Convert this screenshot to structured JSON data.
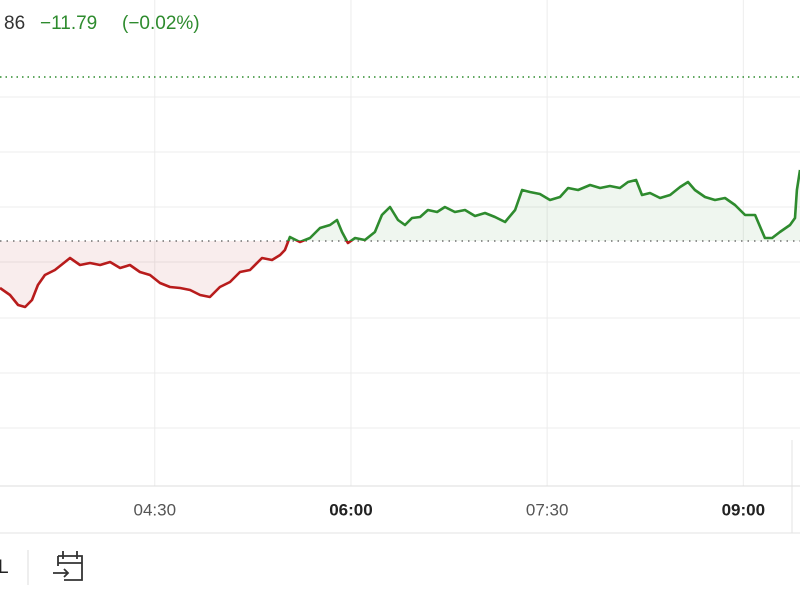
{
  "header": {
    "price_fragment": "86",
    "change": "−11.79",
    "change_pct": "(−0.02%)"
  },
  "chart_data": {
    "type": "line",
    "x": [
      199,
      203.6,
      207.3,
      210.5,
      213.7,
      216.4,
      219.6,
      224.2,
      228.8,
      231.1,
      235.7,
      240.3,
      244.9,
      249.5,
      254.1,
      258.6,
      263.2,
      267.8,
      272.4,
      277.0,
      281.6,
      286.2,
      290.8,
      295.3,
      299.9,
      304.5,
      309.1,
      313.7,
      319.2,
      323.8,
      327.5,
      329.7,
      332.0,
      336.6,
      341.2,
      345.8,
      350.4,
      353.6,
      355.9,
      358.6,
      361.9,
      366.4,
      371.0,
      374.2,
      377.9,
      381.6,
      384.8,
      388.0,
      391.7,
      395.3,
      399.5,
      403.1,
      407.7,
      412.3,
      416.9,
      421.5,
      426.1,
      430.7,
      435.3,
      438.5,
      442.1,
      446.7,
      451.3,
      455.9,
      459.6,
      464.2,
      469.7,
      474.3,
      478.8,
      483.4,
      487.1,
      490.8,
      493.5,
      497.2,
      501.8,
      506.4,
      511.0,
      514.6,
      517.8,
      522.4,
      527.0,
      531.6,
      536.2,
      540.8,
      545.4,
      549.9,
      553.2,
      556.8,
      561.4,
      563.7,
      564.6,
      566
    ],
    "values": [
      -47,
      -54,
      -64,
      -66,
      -59,
      -44,
      -34,
      -29,
      -21,
      -17,
      -24,
      -22,
      -24,
      -21,
      -27,
      -24,
      -31,
      -34,
      -42,
      -46,
      -47,
      -49,
      -54,
      -56,
      -46,
      -41,
      -31,
      -29,
      -17,
      -19,
      -14,
      -9,
      4,
      -1,
      3,
      13,
      16,
      21,
      9,
      -2,
      3,
      1,
      9,
      26,
      34,
      21,
      16,
      23,
      24,
      31,
      29,
      34,
      29,
      31,
      25,
      28,
      24,
      19,
      31,
      51,
      49,
      47,
      41,
      44,
      53,
      51,
      56,
      53,
      55,
      53,
      59,
      61,
      46,
      48,
      43,
      46,
      54,
      59,
      51,
      44,
      41,
      43,
      36,
      26,
      26,
      3,
      3,
      9,
      16,
      23,
      51,
      71
    ],
    "up_color": "#2e8b2e",
    "down_color": "#b81c1c",
    "baseline": 0,
    "reference_line": 164,
    "xlim": [
      199,
      566
    ],
    "ylim": [
      -245,
      200
    ],
    "xticks": [
      {
        "value": 270,
        "label": "04:30"
      },
      {
        "value": 360,
        "label": "06:00"
      },
      {
        "value": 450,
        "label": "07:30"
      },
      {
        "value": 540,
        "label": "09:00"
      }
    ],
    "grid_lines": [
      144,
      89,
      34,
      -21,
      -77,
      -132,
      -187
    ]
  },
  "toolbar": {
    "range_fragment": "L"
  }
}
